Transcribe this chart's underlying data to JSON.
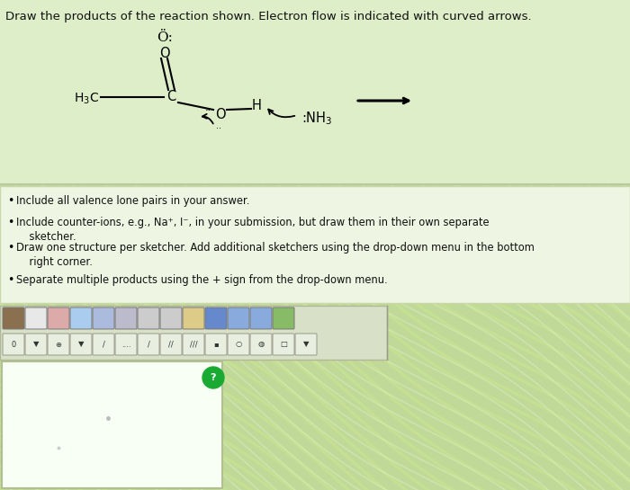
{
  "title": "Draw the products of the reaction shown. Electron flow is indicated with curved arrows.",
  "bg_stripe_color1": "#b8d890",
  "bg_stripe_color2": "#c8e8a0",
  "bg_base": "#c0d898",
  "top_section_bg": "#ddeebb",
  "instruction_bg": "#eef5e2",
  "instruction_border": "#c8d8a8",
  "sketcher_bg": "#f8fff4",
  "sketcher_border": "#b0c090",
  "toolbar_bg": "#d8e0c8",
  "toolbar_border": "#b0b898",
  "bullet_points": [
    "Include all valence lone pairs in your answer.",
    "Include counter-ions, e.g., Na⁺, I⁻, in your submission, but draw them in their own separate sketcher.",
    "Draw one structure per sketcher. Add additional sketchers using the drop-down menu in the bottom right corner.",
    "Separate multiple products using the + sign from the drop-down menu."
  ],
  "fig_width": 7.0,
  "fig_height": 5.45,
  "dpi": 100
}
